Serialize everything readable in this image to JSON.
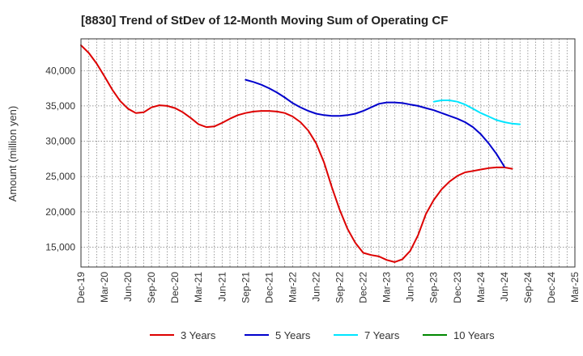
{
  "chart_data": {
    "type": "line",
    "title": "[8830]  Trend of StDev of 12-Month Moving Sum of Operating CF",
    "ylabel": "Amount (million yen)",
    "xlabel": "",
    "x_tick_labels": [
      "Dec-19",
      "Mar-20",
      "Jun-20",
      "Sep-20",
      "Dec-20",
      "Mar-21",
      "Jun-21",
      "Sep-21",
      "Dec-21",
      "Mar-22",
      "Jun-22",
      "Sep-22",
      "Dec-22",
      "Mar-23",
      "Jun-23",
      "Sep-23",
      "Dec-23",
      "Mar-24",
      "Jun-24",
      "Sep-24",
      "Dec-24",
      "Mar-25"
    ],
    "y_ticks": [
      15000,
      20000,
      25000,
      30000,
      35000,
      40000
    ],
    "y_tick_labels": [
      "15,000",
      "20,000",
      "25,000",
      "30,000",
      "35,000",
      "40,000"
    ],
    "ylim": [
      12200,
      44500
    ],
    "grid": true,
    "legend_position": "bottom",
    "series": [
      {
        "name": "3 Years",
        "color": "#dd0000",
        "start": "Dec-19",
        "values": [
          43600,
          42500,
          41000,
          39200,
          37300,
          35700,
          34600,
          34000,
          34100,
          34800,
          35100,
          35000,
          34700,
          34100,
          33300,
          32400,
          32000,
          32100,
          32600,
          33200,
          33700,
          34000,
          34200,
          34300,
          34300,
          34200,
          34000,
          33500,
          32700,
          31500,
          29700,
          27000,
          23500,
          20300,
          17600,
          15600,
          14200,
          13900,
          13700,
          13200,
          12900,
          13300,
          14500,
          16700,
          19700,
          21700,
          23200,
          24300,
          25100,
          25600,
          25800,
          26000,
          26200,
          26300,
          26300,
          26100
        ]
      },
      {
        "name": "5 Years",
        "color": "#0000cc",
        "start": "Sep-21",
        "values": [
          38700,
          38400,
          38000,
          37500,
          36900,
          36200,
          35400,
          34800,
          34300,
          33900,
          33700,
          33600,
          33600,
          33700,
          33900,
          34300,
          34800,
          35300,
          35500,
          35500,
          35400,
          35200,
          35000,
          34700,
          34400,
          34000,
          33600,
          33200,
          32700,
          32000,
          31000,
          29700,
          28200,
          26400
        ]
      },
      {
        "name": "7 Years",
        "color": "#00e5ff",
        "start": "Sep-23",
        "values": [
          35600,
          35800,
          35800,
          35600,
          35200,
          34600,
          34000,
          33500,
          33000,
          32700,
          32500,
          32400
        ]
      },
      {
        "name": "10 Years",
        "color": "#008800",
        "start": "Sep-23",
        "values": []
      }
    ]
  }
}
